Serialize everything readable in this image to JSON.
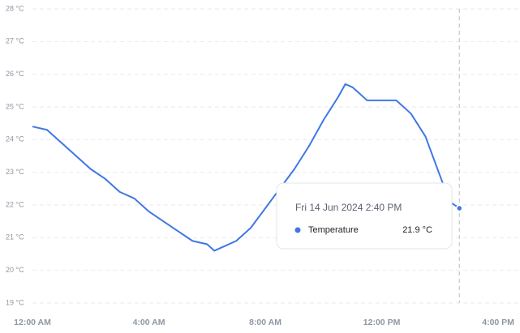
{
  "chart_data": {
    "type": "line",
    "x": [
      0,
      30,
      60,
      90,
      120,
      150,
      180,
      210,
      240,
      270,
      300,
      330,
      360,
      375,
      390,
      420,
      450,
      480,
      510,
      540,
      570,
      600,
      630,
      645,
      660,
      690,
      720,
      750,
      780,
      810,
      840,
      860,
      880
    ],
    "series": [
      {
        "name": "Temperature",
        "color": "#3f77e4",
        "values": [
          24.4,
          24.3,
          23.9,
          23.5,
          23.1,
          22.8,
          22.4,
          22.2,
          21.8,
          21.5,
          21.2,
          20.9,
          20.8,
          20.6,
          20.7,
          20.9,
          21.3,
          21.9,
          22.5,
          23.1,
          23.8,
          24.6,
          25.3,
          25.7,
          25.6,
          25.2,
          25.2,
          25.2,
          24.8,
          24.1,
          22.9,
          22.1,
          21.9
        ]
      }
    ],
    "xlim": [
      0,
      1005
    ],
    "xticks": [
      {
        "value": 0,
        "label": "12:00 AM"
      },
      {
        "value": 240,
        "label": "4:00 AM"
      },
      {
        "value": 480,
        "label": "8:00 AM"
      },
      {
        "value": 720,
        "label": "12:00 PM"
      },
      {
        "value": 960,
        "label": "4:00 PM"
      }
    ],
    "ylim": [
      19,
      28
    ],
    "yticks": [
      {
        "value": 19,
        "label": "19 °C"
      },
      {
        "value": 20,
        "label": "20 °C"
      },
      {
        "value": 21,
        "label": "21 °C"
      },
      {
        "value": 22,
        "label": "22 °C"
      },
      {
        "value": 23,
        "label": "23 °C"
      },
      {
        "value": 24,
        "label": "24 °C"
      },
      {
        "value": 25,
        "label": "25 °C"
      },
      {
        "value": 26,
        "label": "26 °C"
      },
      {
        "value": 27,
        "label": "27 °C"
      },
      {
        "value": 28,
        "label": "28 °C"
      }
    ],
    "grid": true,
    "tooltip": {
      "x": 880,
      "title": "Fri 14 Jun 2024 2:40 PM",
      "value": 21.9,
      "value_label": "21.9 °C"
    }
  }
}
